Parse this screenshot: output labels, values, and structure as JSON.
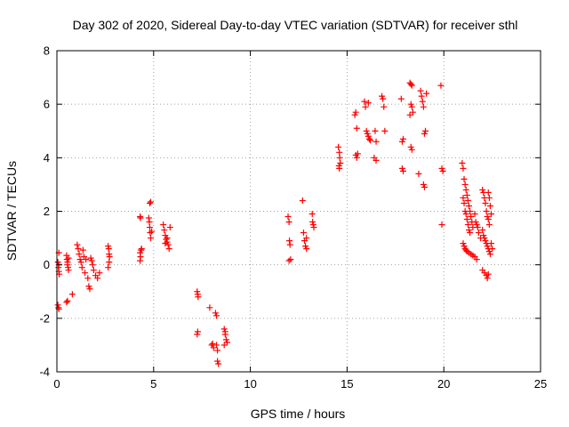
{
  "chart_data": {
    "type": "scatter",
    "title": "Day 302 of 2020, Sidereal Day-to-day VTEC variation (SDTVAR) for receiver sthl",
    "xlabel": "GPS time / hours",
    "ylabel": "SDTVAR / TECUs",
    "xlim": [
      0,
      25
    ],
    "ylim": [
      -4,
      8
    ],
    "xticks": [
      0,
      5,
      10,
      15,
      20,
      25
    ],
    "yticks": [
      -4,
      -2,
      0,
      2,
      4,
      6,
      8
    ],
    "grid": true,
    "marker": "+",
    "color": "#ff0000",
    "series": [
      {
        "name": "SDTVAR",
        "points": [
          [
            0.05,
            -1.5
          ],
          [
            0.08,
            -1.6
          ],
          [
            0.1,
            -1.65
          ],
          [
            0.1,
            0.45
          ],
          [
            0.05,
            0.1
          ],
          [
            0.08,
            -0.1
          ],
          [
            0.1,
            -0.25
          ],
          [
            0.12,
            -0.35
          ],
          [
            0.1,
            0.0
          ],
          [
            0.5,
            0.35
          ],
          [
            0.52,
            0.2
          ],
          [
            0.55,
            0.1
          ],
          [
            0.55,
            0.0
          ],
          [
            0.58,
            -0.1
          ],
          [
            0.6,
            -0.2
          ],
          [
            0.5,
            -1.4
          ],
          [
            0.55,
            -1.35
          ],
          [
            0.6,
            0.25
          ],
          [
            0.8,
            -1.1
          ],
          [
            1.05,
            0.75
          ],
          [
            1.1,
            0.6
          ],
          [
            1.15,
            0.4
          ],
          [
            1.2,
            0.2
          ],
          [
            1.25,
            0.1
          ],
          [
            1.3,
            -0.1
          ],
          [
            1.35,
            0.55
          ],
          [
            1.4,
            0.3
          ],
          [
            1.45,
            -0.3
          ],
          [
            1.5,
            0.2
          ],
          [
            1.6,
            -0.5
          ],
          [
            1.65,
            -0.8
          ],
          [
            1.7,
            -0.9
          ],
          [
            1.75,
            0.25
          ],
          [
            1.8,
            0.15
          ],
          [
            1.85,
            0.0
          ],
          [
            1.9,
            -0.2
          ],
          [
            2.0,
            -0.4
          ],
          [
            2.1,
            -0.5
          ],
          [
            2.2,
            -0.3
          ],
          [
            2.65,
            0.7
          ],
          [
            2.68,
            0.6
          ],
          [
            2.7,
            0.4
          ],
          [
            2.72,
            0.3
          ],
          [
            2.7,
            0.1
          ],
          [
            2.65,
            -0.1
          ],
          [
            4.3,
            1.8
          ],
          [
            4.32,
            1.75
          ],
          [
            4.35,
            0.55
          ],
          [
            4.3,
            0.45
          ],
          [
            4.32,
            0.3
          ],
          [
            4.3,
            0.15
          ],
          [
            4.38,
            0.6
          ],
          [
            4.8,
            2.3
          ],
          [
            4.85,
            2.35
          ],
          [
            4.75,
            1.75
          ],
          [
            4.78,
            1.6
          ],
          [
            4.8,
            1.4
          ],
          [
            4.82,
            1.2
          ],
          [
            4.85,
            1.0
          ],
          [
            4.9,
            1.25
          ],
          [
            5.5,
            1.5
          ],
          [
            5.55,
            1.3
          ],
          [
            5.6,
            1.1
          ],
          [
            5.65,
            0.95
          ],
          [
            5.7,
            0.85
          ],
          [
            5.75,
            0.75
          ],
          [
            5.8,
            0.6
          ],
          [
            5.85,
            1.4
          ],
          [
            5.6,
            0.8
          ],
          [
            5.7,
            1.0
          ],
          [
            7.25,
            -1.0
          ],
          [
            7.28,
            -1.1
          ],
          [
            7.3,
            -1.2
          ],
          [
            7.25,
            -2.6
          ],
          [
            7.28,
            -2.5
          ],
          [
            7.9,
            -1.6
          ],
          [
            8.0,
            -3.0
          ],
          [
            8.05,
            -2.95
          ],
          [
            8.1,
            -3.1
          ],
          [
            8.2,
            -1.8
          ],
          [
            8.25,
            -1.9
          ],
          [
            8.3,
            -3.6
          ],
          [
            8.35,
            -3.7
          ],
          [
            8.3,
            -3.2
          ],
          [
            8.25,
            -3.0
          ],
          [
            8.65,
            -2.4
          ],
          [
            8.7,
            -2.6
          ],
          [
            8.75,
            -2.8
          ],
          [
            8.8,
            -2.9
          ],
          [
            8.65,
            -3.0
          ],
          [
            8.7,
            -2.5
          ],
          [
            11.95,
            1.8
          ],
          [
            12.0,
            1.6
          ],
          [
            12.02,
            0.9
          ],
          [
            12.05,
            0.75
          ],
          [
            12.08,
            0.2
          ],
          [
            12.0,
            0.15
          ],
          [
            12.7,
            2.4
          ],
          [
            12.75,
            1.2
          ],
          [
            12.8,
            0.9
          ],
          [
            12.85,
            0.7
          ],
          [
            12.9,
            1.0
          ],
          [
            12.9,
            0.6
          ],
          [
            13.2,
            1.9
          ],
          [
            13.22,
            1.6
          ],
          [
            13.25,
            1.5
          ],
          [
            13.28,
            1.4
          ],
          [
            14.55,
            4.4
          ],
          [
            14.6,
            4.2
          ],
          [
            14.62,
            4.0
          ],
          [
            14.65,
            3.8
          ],
          [
            14.6,
            3.6
          ],
          [
            14.58,
            3.7
          ],
          [
            15.4,
            5.6
          ],
          [
            15.45,
            5.7
          ],
          [
            15.5,
            5.1
          ],
          [
            15.45,
            4.1
          ],
          [
            15.5,
            4.0
          ],
          [
            15.55,
            4.15
          ],
          [
            15.9,
            6.1
          ],
          [
            15.95,
            5.9
          ],
          [
            16.0,
            5.0
          ],
          [
            16.05,
            4.9
          ],
          [
            16.1,
            4.8
          ],
          [
            16.15,
            4.7
          ],
          [
            16.2,
            4.65
          ],
          [
            16.1,
            6.05
          ],
          [
            16.45,
            5.0
          ],
          [
            16.5,
            4.6
          ],
          [
            16.4,
            4.0
          ],
          [
            16.5,
            3.9
          ],
          [
            16.8,
            6.3
          ],
          [
            16.85,
            6.2
          ],
          [
            16.9,
            5.9
          ],
          [
            16.95,
            5.0
          ],
          [
            17.8,
            6.2
          ],
          [
            17.85,
            4.6
          ],
          [
            17.9,
            4.7
          ],
          [
            17.85,
            3.6
          ],
          [
            17.9,
            3.5
          ],
          [
            18.25,
            6.8
          ],
          [
            18.3,
            6.75
          ],
          [
            18.35,
            6.7
          ],
          [
            18.3,
            6.0
          ],
          [
            18.35,
            5.9
          ],
          [
            18.4,
            5.7
          ],
          [
            18.3,
            4.4
          ],
          [
            18.35,
            4.3
          ],
          [
            18.25,
            5.6
          ],
          [
            18.8,
            6.5
          ],
          [
            18.85,
            6.3
          ],
          [
            18.9,
            6.1
          ],
          [
            18.95,
            5.9
          ],
          [
            19.0,
            4.9
          ],
          [
            19.05,
            5.0
          ],
          [
            19.1,
            6.4
          ],
          [
            18.95,
            3.0
          ],
          [
            19.0,
            2.9
          ],
          [
            18.7,
            3.4
          ],
          [
            19.85,
            6.7
          ],
          [
            19.9,
            3.6
          ],
          [
            19.95,
            3.5
          ],
          [
            19.9,
            1.5
          ],
          [
            20.95,
            3.8
          ],
          [
            21.0,
            3.6
          ],
          [
            21.05,
            3.2
          ],
          [
            21.1,
            3.0
          ],
          [
            21.15,
            2.8
          ],
          [
            21.2,
            2.6
          ],
          [
            21.25,
            2.4
          ],
          [
            21.3,
            2.2
          ],
          [
            21.35,
            2.0
          ],
          [
            21.4,
            1.8
          ],
          [
            21.45,
            1.6
          ],
          [
            21.5,
            1.4
          ],
          [
            21.0,
            2.5
          ],
          [
            21.05,
            2.3
          ],
          [
            21.1,
            2.0
          ],
          [
            21.15,
            1.9
          ],
          [
            21.2,
            1.7
          ],
          [
            21.25,
            1.5
          ],
          [
            21.3,
            1.3
          ],
          [
            21.35,
            1.2
          ],
          [
            21.0,
            0.8
          ],
          [
            21.05,
            0.7
          ],
          [
            21.1,
            0.6
          ],
          [
            21.15,
            0.55
          ],
          [
            21.2,
            0.5
          ],
          [
            21.3,
            0.45
          ],
          [
            21.4,
            0.4
          ],
          [
            21.5,
            0.35
          ],
          [
            21.6,
            0.3
          ],
          [
            21.7,
            0.2
          ],
          [
            21.6,
            1.9
          ],
          [
            21.65,
            1.6
          ],
          [
            21.7,
            1.5
          ],
          [
            21.75,
            1.4
          ],
          [
            21.8,
            1.2
          ],
          [
            21.9,
            1.0
          ],
          [
            22.0,
            2.8
          ],
          [
            22.05,
            2.7
          ],
          [
            22.1,
            2.5
          ],
          [
            22.15,
            2.3
          ],
          [
            22.2,
            2.0
          ],
          [
            22.25,
            1.8
          ],
          [
            22.3,
            1.7
          ],
          [
            22.35,
            1.5
          ],
          [
            22.0,
            1.3
          ],
          [
            22.05,
            1.1
          ],
          [
            22.1,
            1.0
          ],
          [
            22.15,
            0.9
          ],
          [
            22.2,
            0.8
          ],
          [
            22.25,
            0.7
          ],
          [
            22.3,
            0.6
          ],
          [
            22.35,
            0.5
          ],
          [
            22.4,
            0.4
          ],
          [
            22.0,
            -0.2
          ],
          [
            22.1,
            -0.3
          ],
          [
            22.2,
            -0.4
          ],
          [
            22.25,
            -0.5
          ],
          [
            22.3,
            -0.35
          ],
          [
            22.3,
            2.7
          ],
          [
            22.35,
            2.5
          ],
          [
            22.4,
            2.2
          ],
          [
            22.45,
            1.9
          ],
          [
            22.45,
            0.8
          ],
          [
            22.5,
            0.6
          ]
        ]
      }
    ]
  }
}
